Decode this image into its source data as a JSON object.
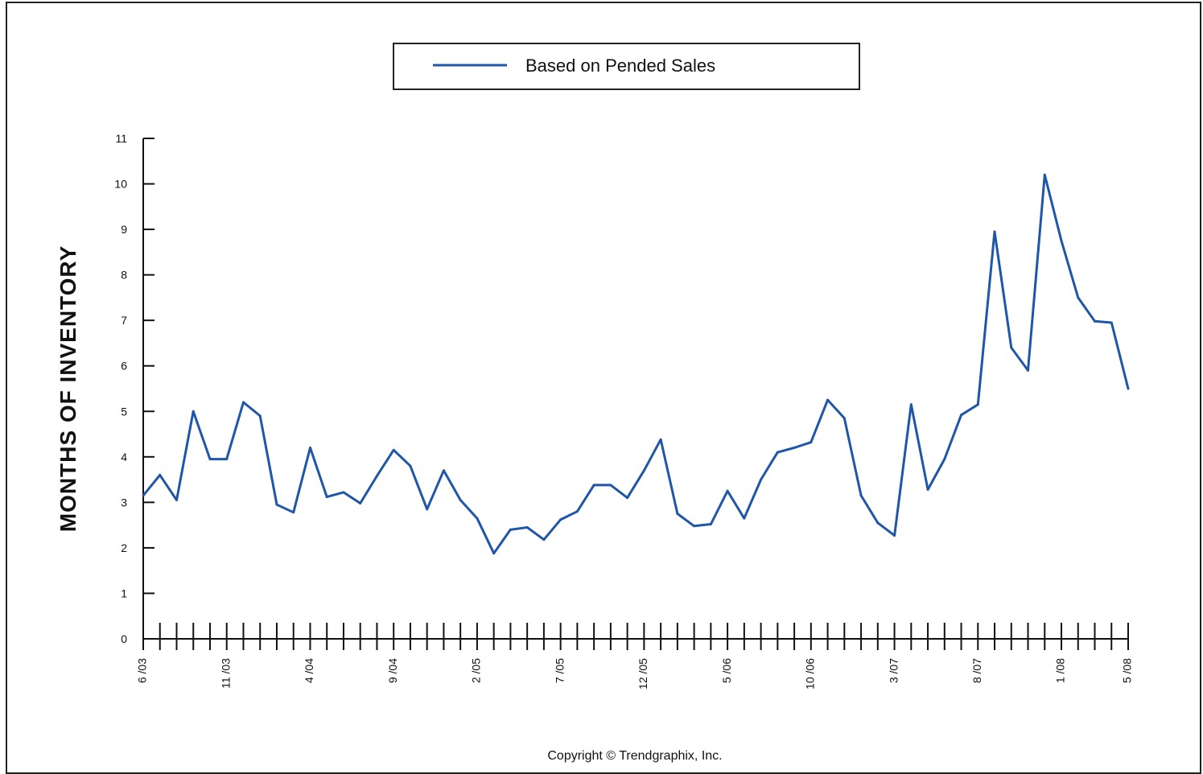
{
  "chart_data": {
    "type": "line",
    "ylabel": "MONTHS OF INVENTORY",
    "xlabel": "",
    "ylim": [
      0,
      11
    ],
    "y_ticks": [
      "0",
      "1",
      "2",
      "3",
      "4",
      "5",
      "6",
      "7",
      "8",
      "9",
      "10",
      "11"
    ],
    "x_tick_labels": [
      "6 /03",
      "11 /03",
      "4 /04",
      "9 /04",
      "2 /05",
      "7 /05",
      "12 /05",
      "5 /06",
      "10 /06",
      "3 /07",
      "8 /07",
      "1 /08",
      "5 /08"
    ],
    "x_months": [
      "6/03",
      "7/03",
      "8/03",
      "9/03",
      "10/03",
      "11/03",
      "12/03",
      "1/04",
      "2/04",
      "3/04",
      "4/04",
      "5/04",
      "6/04",
      "7/04",
      "8/04",
      "9/04",
      "10/04",
      "11/04",
      "12/04",
      "1/05",
      "2/05",
      "3/05",
      "4/05",
      "5/05",
      "6/05",
      "7/05",
      "8/05",
      "9/05",
      "10/05",
      "11/05",
      "12/05",
      "1/06",
      "2/06",
      "3/06",
      "4/06",
      "5/06",
      "6/06",
      "7/06",
      "8/06",
      "9/06",
      "10/06",
      "11/06",
      "12/06",
      "1/07",
      "2/07",
      "3/07",
      "4/07",
      "5/07",
      "6/07",
      "7/07",
      "8/07",
      "9/07",
      "10/07",
      "11/07",
      "12/07",
      "1/08",
      "2/08",
      "3/08",
      "4/08",
      "5/08"
    ],
    "series": [
      {
        "name": "Based on Pended Sales",
        "color": "#1f56a8",
        "values": [
          3.15,
          3.6,
          3.05,
          5.0,
          3.95,
          3.95,
          5.2,
          4.9,
          2.95,
          2.78,
          4.2,
          3.12,
          3.22,
          2.98,
          3.58,
          4.15,
          3.8,
          2.85,
          3.7,
          3.05,
          2.65,
          1.88,
          2.4,
          2.45,
          2.18,
          2.62,
          2.8,
          3.38,
          3.38,
          3.1,
          3.7,
          4.38,
          2.75,
          2.48,
          2.52,
          3.25,
          2.65,
          3.5,
          4.1,
          4.2,
          4.32,
          5.25,
          4.85,
          3.15,
          2.55,
          2.27,
          5.15,
          3.28,
          3.95,
          4.92,
          5.15,
          8.95,
          6.4,
          5.9,
          10.2,
          8.75,
          7.5,
          6.98,
          6.95,
          5.5
        ]
      }
    ],
    "legend": {
      "position": "top-center"
    }
  },
  "legend_label": "Based on Pended Sales",
  "copyright": "Copyright © Trendgraphix, Inc."
}
